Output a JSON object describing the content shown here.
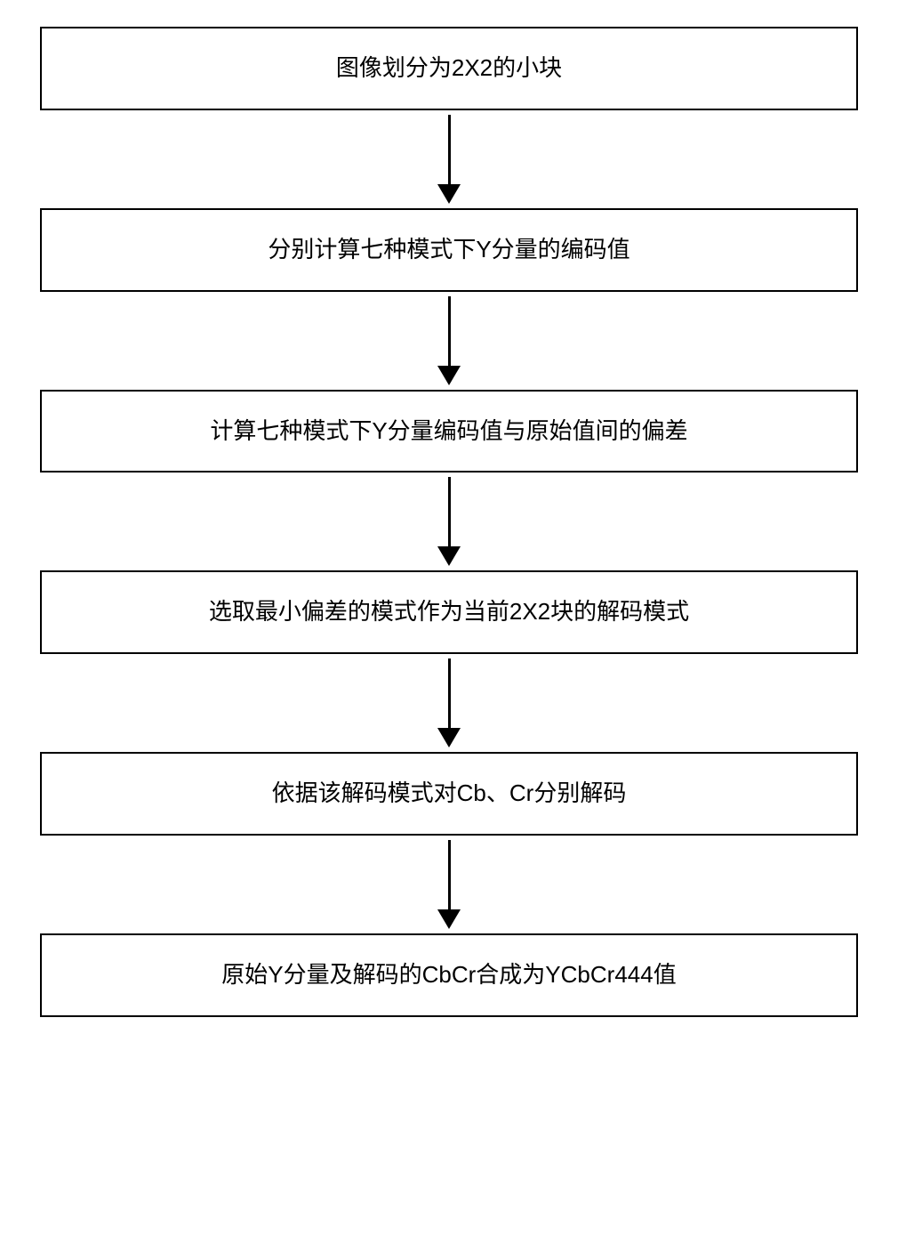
{
  "flowchart": {
    "type": "flowchart",
    "direction": "vertical",
    "background_color": "#ffffff",
    "box_border_color": "#000000",
    "box_border_width": 2,
    "box_background_color": "#ffffff",
    "text_color": "#000000",
    "font_size": 26,
    "font_family": "Microsoft YaHei",
    "arrow_color": "#000000",
    "arrow_line_width": 3,
    "arrow_line_length": 78,
    "arrow_head_width": 26,
    "arrow_head_height": 22,
    "box_padding": 28,
    "box_width_ratio": 1.0,
    "steps": [
      {
        "label": "图像划分为2X2的小块"
      },
      {
        "label": "分别计算七种模式下Y分量的编码值"
      },
      {
        "label": "计算七种模式下Y分量编码值与原始值间的偏差"
      },
      {
        "label": "选取最小偏差的模式作为当前2X2块的解码模式"
      },
      {
        "label": "依据该解码模式对Cb、Cr分别解码"
      },
      {
        "label": "原始Y分量及解码的CbCr合成为YCbCr444值"
      }
    ]
  }
}
